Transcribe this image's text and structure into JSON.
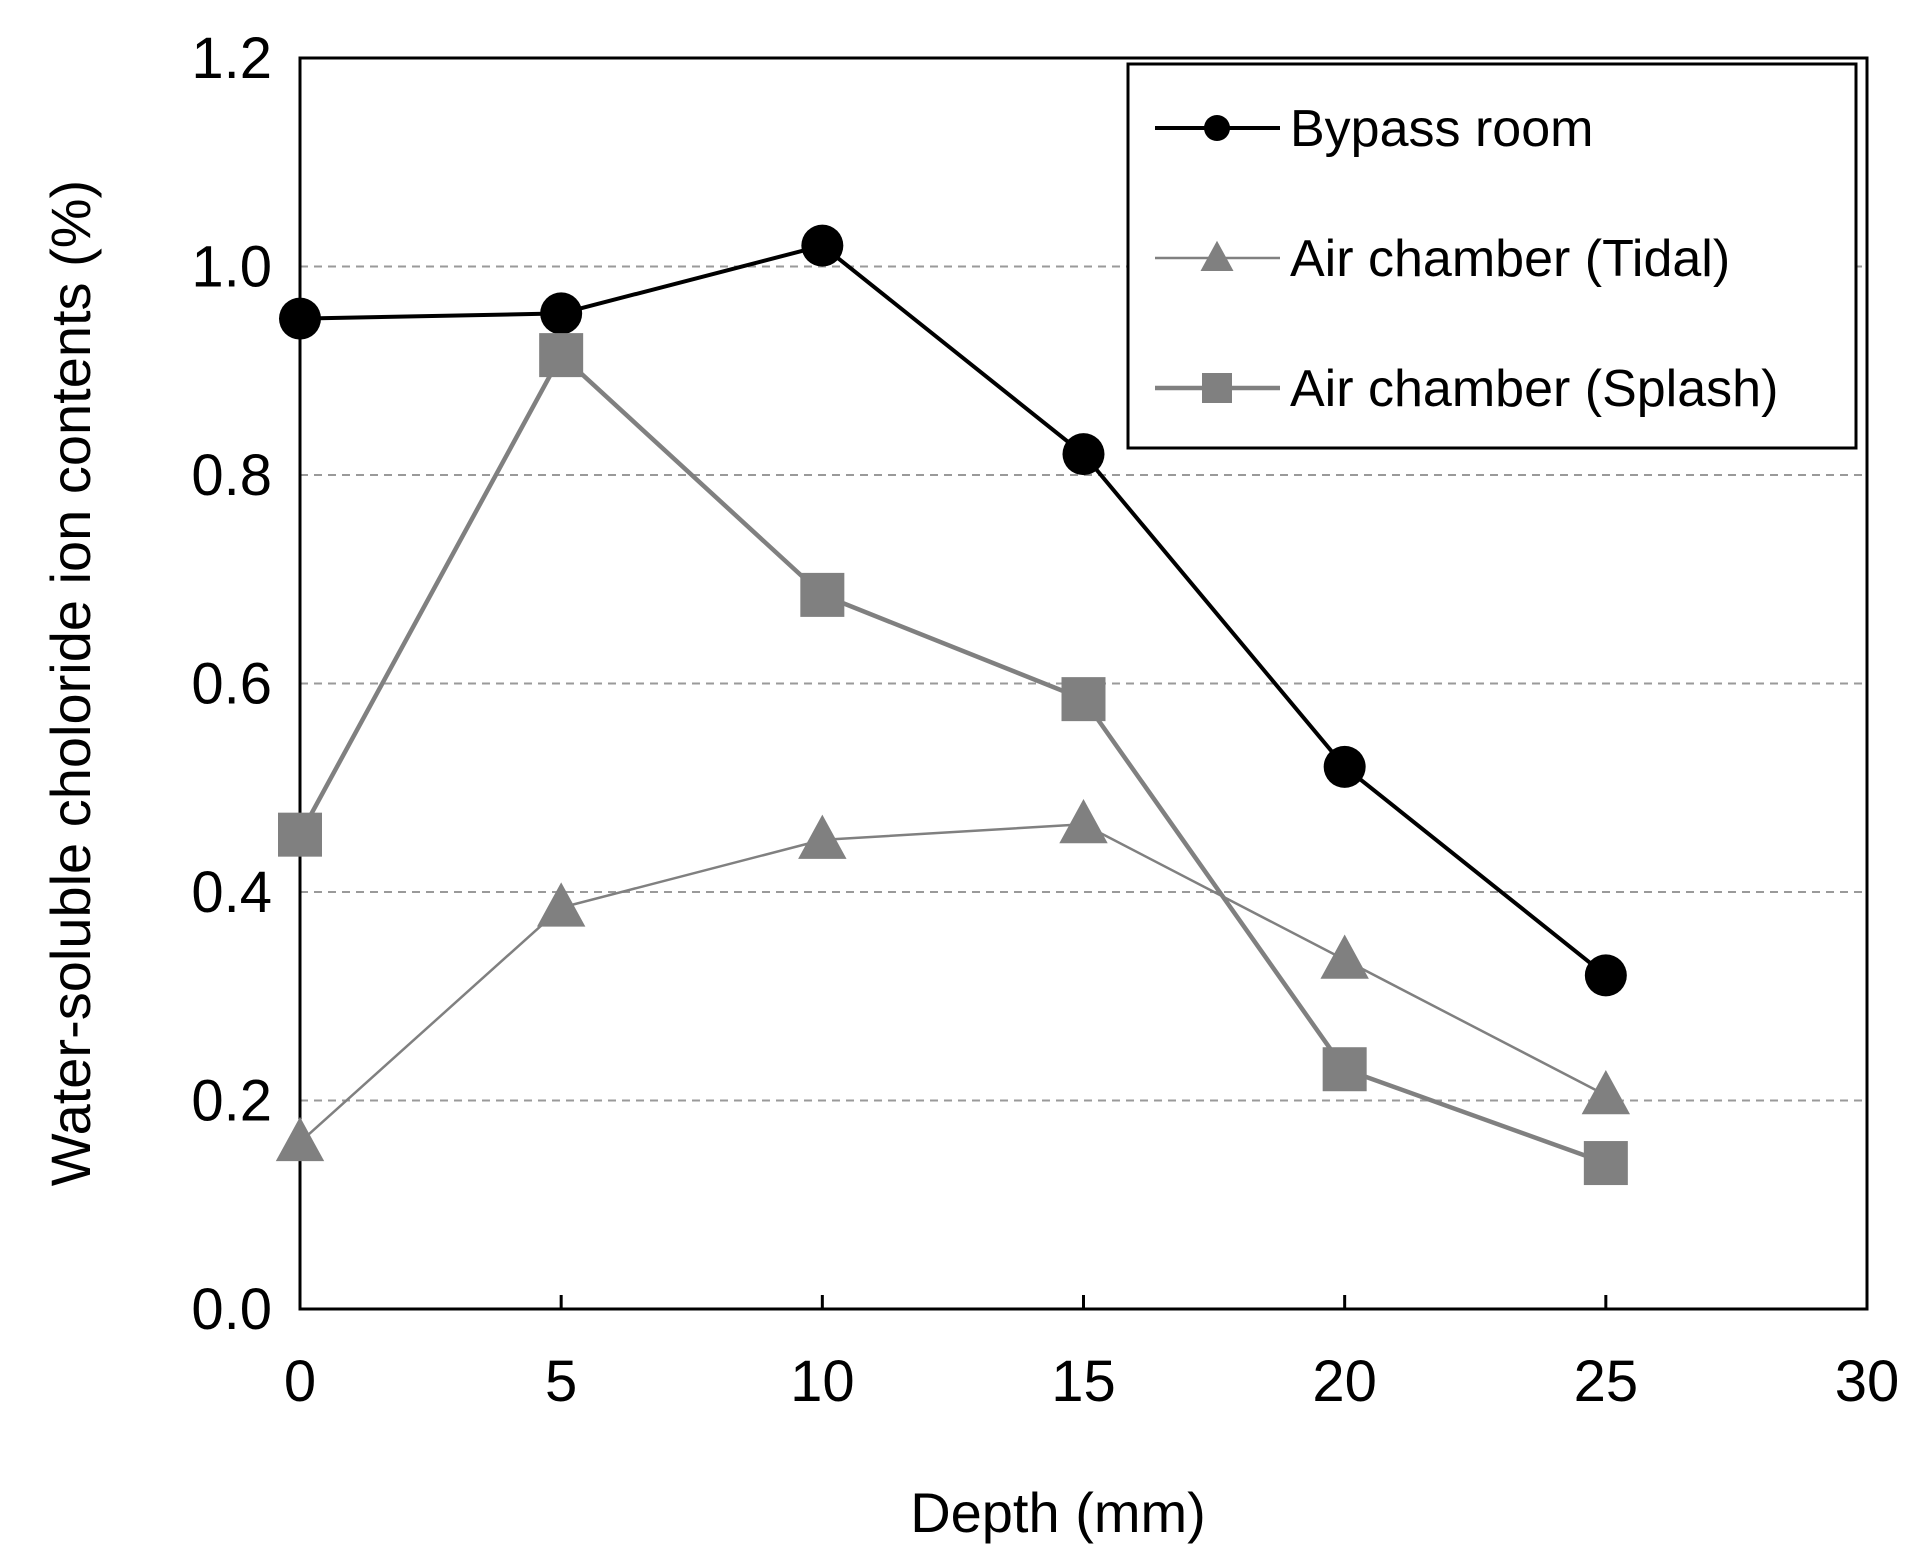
{
  "chart_data": {
    "type": "line",
    "title": "",
    "xlabel": "Depth (mm)",
    "ylabel": "Water-soluble choloride ion contents (%)",
    "xlim": [
      0,
      30
    ],
    "ylim": [
      0,
      1.2
    ],
    "x_ticks": [
      "0",
      "5",
      "10",
      "15",
      "20",
      "25",
      "30"
    ],
    "y_ticks": [
      "0.0",
      "0.2",
      "0.4",
      "0.6",
      "0.8",
      "1.0",
      "1.2"
    ],
    "grid": "horizontal dashed",
    "legend_position": "top-right",
    "x": [
      0,
      5,
      10,
      15,
      20,
      25
    ],
    "series": [
      {
        "name": "Bypass room",
        "marker": "circle",
        "color": "#000000",
        "values": [
          0.95,
          0.955,
          1.02,
          0.82,
          0.52,
          0.32
        ]
      },
      {
        "name": "Air chamber (Tidal)",
        "marker": "triangle",
        "color": "#808080",
        "values": [
          0.16,
          0.385,
          0.45,
          0.465,
          0.335,
          0.205
        ]
      },
      {
        "name": "Air chamber (Splash)",
        "marker": "square",
        "color": "#808080",
        "values": [
          0.455,
          0.915,
          0.685,
          0.585,
          0.23,
          0.14
        ]
      }
    ]
  }
}
